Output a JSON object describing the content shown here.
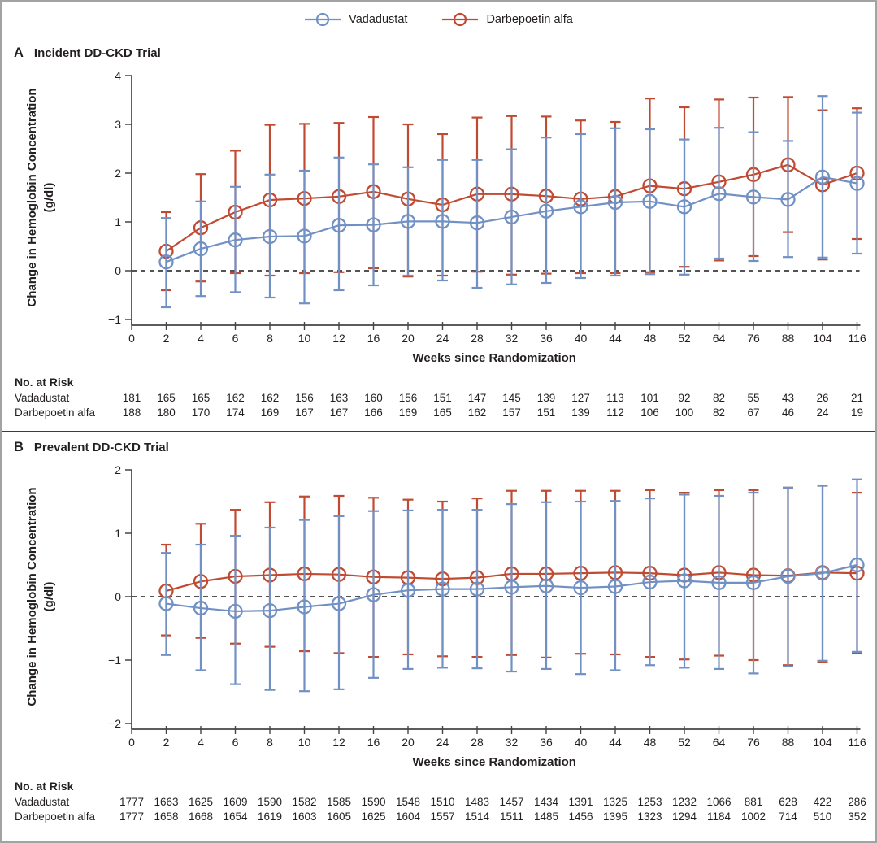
{
  "legend": {
    "items": [
      {
        "label": "Vadadustat",
        "color": "#7191c5"
      },
      {
        "label": "Darbepoetin alfa",
        "color": "#c04b32"
      }
    ]
  },
  "colors": {
    "axis": "#444444",
    "text": "#231f20",
    "zero_line": "#1a1a1a"
  },
  "chart_data": [
    {
      "type": "line",
      "panel_label": "A",
      "title": "Incident DD-CKD Trial",
      "xlabel": "Weeks since Randomization",
      "ylabel_line1": "Change in Hemoglobin Concentration",
      "ylabel_line2": "(g/dl)",
      "ylim": [
        -1,
        4
      ],
      "yticks": [
        4,
        3,
        2,
        1,
        0,
        -1
      ],
      "zero_line_dashed": true,
      "grid": false,
      "x_categories": [
        0,
        2,
        4,
        6,
        8,
        10,
        12,
        16,
        20,
        24,
        28,
        32,
        36,
        40,
        44,
        48,
        52,
        64,
        76,
        88,
        104,
        116
      ],
      "x_start_index": 1,
      "series": [
        {
          "name": "Vadadustat",
          "color": "#7191c5",
          "means": [
            0.18,
            0.45,
            0.63,
            0.7,
            0.71,
            0.93,
            0.94,
            1.01,
            1.01,
            0.98,
            1.1,
            1.22,
            1.31,
            1.4,
            1.42,
            1.31,
            1.58,
            1.51,
            1.46,
            1.92,
            1.79
          ],
          "lower": [
            -0.75,
            -0.52,
            -0.44,
            -0.55,
            -0.67,
            -0.4,
            -0.3,
            -0.1,
            -0.2,
            -0.35,
            -0.28,
            -0.25,
            -0.15,
            -0.1,
            -0.07,
            -0.08,
            0.25,
            0.2,
            0.28,
            0.27,
            0.35
          ],
          "upper": [
            1.08,
            1.42,
            1.72,
            1.97,
            2.05,
            2.32,
            2.18,
            2.12,
            2.27,
            2.27,
            2.49,
            2.73,
            2.8,
            2.92,
            2.9,
            2.69,
            2.93,
            2.84,
            2.66,
            3.58,
            3.24
          ]
        },
        {
          "name": "Darbepoetin alfa",
          "color": "#c04b32",
          "means": [
            0.4,
            0.88,
            1.2,
            1.45,
            1.48,
            1.52,
            1.62,
            1.47,
            1.35,
            1.57,
            1.57,
            1.53,
            1.47,
            1.52,
            1.74,
            1.68,
            1.82,
            1.97,
            2.17,
            1.76,
            2.0
          ],
          "lower": [
            -0.4,
            -0.22,
            -0.05,
            -0.1,
            -0.05,
            -0.03,
            0.05,
            -0.12,
            -0.1,
            -0.02,
            -0.08,
            -0.06,
            -0.05,
            -0.05,
            -0.03,
            0.08,
            0.21,
            0.3,
            0.79,
            0.23,
            0.65
          ],
          "upper": [
            1.2,
            1.98,
            2.46,
            2.99,
            3.01,
            3.03,
            3.15,
            3.0,
            2.8,
            3.14,
            3.17,
            3.16,
            3.08,
            3.05,
            3.53,
            3.35,
            3.51,
            3.55,
            3.56,
            3.29,
            3.33
          ]
        }
      ],
      "risk_table": {
        "title": "No. at Risk",
        "rows": [
          {
            "label": "Vadadustat",
            "values": [
              181,
              165,
              165,
              162,
              162,
              156,
              163,
              160,
              156,
              151,
              147,
              145,
              139,
              127,
              113,
              101,
              92,
              82,
              55,
              43,
              26,
              21
            ]
          },
          {
            "label": "Darbepoetin alfa",
            "values": [
              188,
              180,
              170,
              174,
              169,
              167,
              167,
              166,
              169,
              165,
              162,
              157,
              151,
              139,
              112,
              106,
              100,
              82,
              67,
              46,
              24,
              19
            ]
          }
        ]
      }
    },
    {
      "type": "line",
      "panel_label": "B",
      "title": "Prevalent DD-CKD Trial",
      "xlabel": "Weeks since Randomization",
      "ylabel_line1": "Change in Hemoglobin Concentration",
      "ylabel_line2": "(g/dl)",
      "ylim": [
        -2,
        2
      ],
      "yticks": [
        2,
        1,
        0,
        -1,
        -2
      ],
      "zero_line_dashed": true,
      "grid": false,
      "x_categories": [
        0,
        2,
        4,
        6,
        8,
        10,
        12,
        16,
        20,
        24,
        28,
        32,
        36,
        40,
        44,
        48,
        52,
        64,
        76,
        88,
        104,
        116
      ],
      "x_start_index": 1,
      "series": [
        {
          "name": "Vadadustat",
          "color": "#7191c5",
          "means": [
            -0.11,
            -0.18,
            -0.23,
            -0.22,
            -0.16,
            -0.11,
            0.03,
            0.1,
            0.12,
            0.12,
            0.15,
            0.17,
            0.14,
            0.16,
            0.23,
            0.25,
            0.22,
            0.22,
            0.32,
            0.37,
            0.5
          ],
          "lower": [
            -0.92,
            -1.16,
            -1.38,
            -1.47,
            -1.49,
            -1.46,
            -1.28,
            -1.14,
            -1.12,
            -1.13,
            -1.18,
            -1.14,
            -1.22,
            -1.16,
            -1.08,
            -1.12,
            -1.14,
            -1.21,
            -1.1,
            -1.01,
            -0.87
          ],
          "upper": [
            0.69,
            0.82,
            0.96,
            1.09,
            1.21,
            1.27,
            1.35,
            1.36,
            1.37,
            1.37,
            1.46,
            1.49,
            1.5,
            1.51,
            1.55,
            1.61,
            1.59,
            1.64,
            1.72,
            1.75,
            1.85
          ]
        },
        {
          "name": "Darbepoetin alfa",
          "color": "#c04b32",
          "means": [
            0.09,
            0.24,
            0.32,
            0.34,
            0.36,
            0.35,
            0.31,
            0.3,
            0.28,
            0.3,
            0.36,
            0.36,
            0.37,
            0.38,
            0.37,
            0.34,
            0.38,
            0.34,
            0.33,
            0.38,
            0.37
          ],
          "lower": [
            -0.61,
            -0.65,
            -0.74,
            -0.79,
            -0.86,
            -0.89,
            -0.95,
            -0.91,
            -0.94,
            -0.95,
            -0.92,
            -0.96,
            -0.9,
            -0.91,
            -0.95,
            -0.99,
            -0.93,
            -1.0,
            -1.08,
            -1.03,
            -0.89
          ],
          "upper": [
            0.82,
            1.15,
            1.37,
            1.49,
            1.58,
            1.59,
            1.56,
            1.53,
            1.5,
            1.55,
            1.67,
            1.67,
            1.67,
            1.67,
            1.68,
            1.64,
            1.68,
            1.68,
            1.72,
            1.75,
            1.64
          ]
        }
      ],
      "risk_table": {
        "title": "No. at Risk",
        "rows": [
          {
            "label": "Vadadustat",
            "values": [
              1777,
              1663,
              1625,
              1609,
              1590,
              1582,
              1585,
              1590,
              1548,
              1510,
              1483,
              1457,
              1434,
              1391,
              1325,
              1253,
              1232,
              1066,
              881,
              628,
              422,
              286
            ]
          },
          {
            "label": "Darbepoetin alfa",
            "values": [
              1777,
              1658,
              1668,
              1654,
              1619,
              1603,
              1605,
              1625,
              1604,
              1557,
              1514,
              1511,
              1485,
              1456,
              1395,
              1323,
              1294,
              1184,
              1002,
              714,
              510,
              352
            ]
          }
        ]
      }
    }
  ]
}
